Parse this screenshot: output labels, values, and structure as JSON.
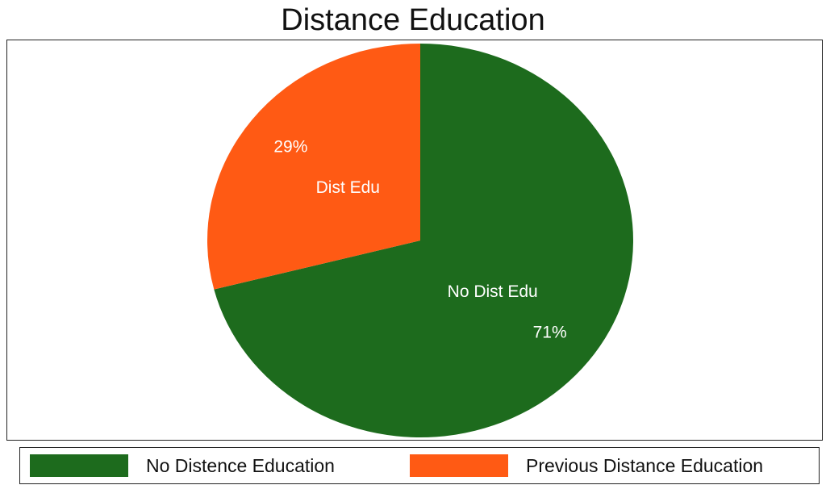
{
  "chart_data": {
    "type": "pie",
    "title": "Distance Education",
    "slices": [
      {
        "label": "No Dist Edu",
        "value": 71,
        "value_label": "71%",
        "color": "#1d6b1d"
      },
      {
        "label": "Dist Edu",
        "value": 29,
        "value_label": "29%",
        "color": "#ff5a14"
      }
    ],
    "legend": {
      "placement": "bottom",
      "entries": [
        {
          "label": "No Distence Education",
          "color": "#1d6b1d"
        },
        {
          "label": "Previous Distance Education",
          "color": "#ff5a14"
        }
      ]
    }
  }
}
